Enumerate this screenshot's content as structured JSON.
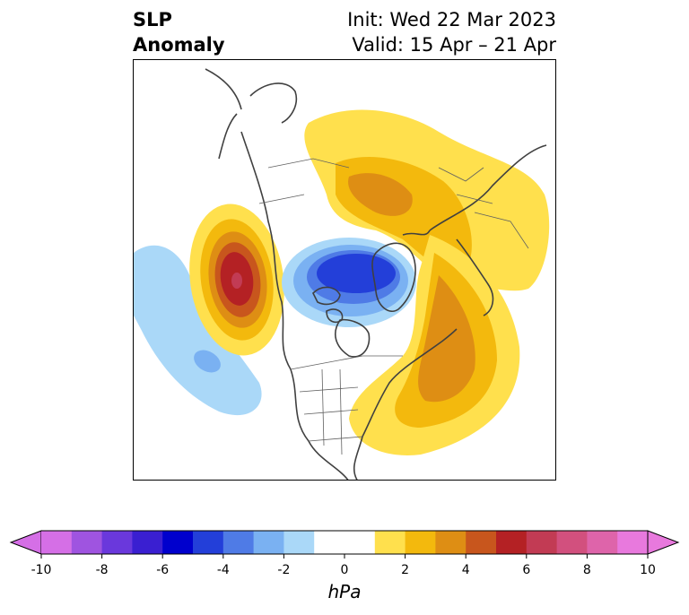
{
  "title": {
    "left_line1": "SLP",
    "left_line2": "Anomaly",
    "init": "Init: Wed 22 Mar 2023",
    "valid": "Valid: 15 Apr – 21 Apr"
  },
  "colorbar": {
    "unit": "hPa",
    "min": -10,
    "max": 10,
    "step": 1,
    "tick_labels": [
      "-10",
      "-8",
      "-6",
      "-4",
      "-2",
      "0",
      "2",
      "4",
      "6",
      "8",
      "10"
    ],
    "colors": [
      "#d56fe6",
      "#9f54e0",
      "#6a38dc",
      "#3a1fd1",
      "#0000cd",
      "#233fd9",
      "#4f7be6",
      "#7ab1f2",
      "#aad8f8",
      "#ffffff",
      "#ffffff",
      "#ffe04d",
      "#f3b90d",
      "#de8e14",
      "#c8561d",
      "#b42124",
      "#c23b54",
      "#d2507e",
      "#de64aa",
      "#e879dd"
    ],
    "under_color": "#d56fe6",
    "over_color": "#e879dd"
  }
}
